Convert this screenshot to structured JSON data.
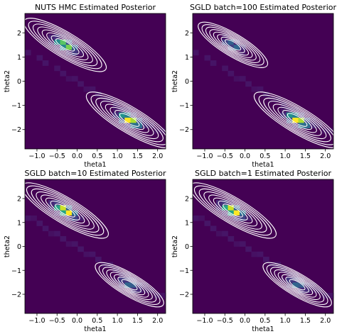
{
  "chart_data": [
    {
      "type": "heatmap",
      "title": "NUTS HMC Estimated Posterior",
      "xlabel": "theta1",
      "ylabel": "theta2",
      "xlim": [
        -1.3,
        2.2
      ],
      "ylim": [
        -2.8,
        2.8
      ],
      "xticks": [
        "−1.0",
        "−0.5",
        "0.0",
        "0.5",
        "1.0",
        "1.5",
        "2.0"
      ],
      "xtick_values": [
        -1.0,
        -0.5,
        0.0,
        0.5,
        1.0,
        1.5,
        2.0
      ],
      "yticks": [
        "−2",
        "−1",
        "0",
        "1",
        "2"
      ],
      "ytick_values": [
        -2,
        -1,
        0,
        1,
        2
      ],
      "grid": false,
      "modes": [
        {
          "theta1": -0.3,
          "theta2": 1.5,
          "density": 0.85
        },
        {
          "theta1": 1.3,
          "theta2": -1.6,
          "density": 1.0
        }
      ],
      "contour_levels": 8,
      "colormap": "viridis"
    },
    {
      "type": "heatmap",
      "title": "SGLD batch=100 Estimated Posterior",
      "xlabel": "theta1",
      "ylabel": "theta2",
      "xlim": [
        -1.3,
        2.2
      ],
      "ylim": [
        -2.8,
        2.8
      ],
      "xticks": [
        "−1.0",
        "−0.5",
        "0.0",
        "0.5",
        "1.0",
        "1.5",
        "2.0"
      ],
      "xtick_values": [
        -1.0,
        -0.5,
        0.0,
        0.5,
        1.0,
        1.5,
        2.0
      ],
      "yticks": [
        "−2",
        "−1",
        "0",
        "1",
        "2"
      ],
      "ytick_values": [
        -2,
        -1,
        0,
        1,
        2
      ],
      "grid": false,
      "modes": [
        {
          "theta1": -0.3,
          "theta2": 1.5,
          "density": 0.35
        },
        {
          "theta1": 1.3,
          "theta2": -1.6,
          "density": 1.0
        }
      ],
      "contour_levels": 8,
      "colormap": "viridis"
    },
    {
      "type": "heatmap",
      "title": "SGLD batch=10 Estimated Posterior",
      "xlabel": "theta1",
      "ylabel": "theta2",
      "xlim": [
        -1.3,
        2.2
      ],
      "ylim": [
        -2.8,
        2.8
      ],
      "xticks": [
        "−1.0",
        "−0.5",
        "0.0",
        "0.5",
        "1.0",
        "1.5",
        "2.0"
      ],
      "xtick_values": [
        -1.0,
        -0.5,
        0.0,
        0.5,
        1.0,
        1.5,
        2.0
      ],
      "yticks": [
        "−2",
        "−1",
        "0",
        "1",
        "2"
      ],
      "ytick_values": [
        -2,
        -1,
        0,
        1,
        2
      ],
      "grid": false,
      "modes": [
        {
          "theta1": -0.3,
          "theta2": 1.5,
          "density": 1.0
        },
        {
          "theta1": 1.3,
          "theta2": -1.6,
          "density": 0.3
        }
      ],
      "contour_levels": 8,
      "colormap": "viridis"
    },
    {
      "type": "heatmap",
      "title": "SGLD batch=1 Estimated Posterior",
      "xlabel": "theta1",
      "ylabel": "theta2",
      "xlim": [
        -1.3,
        2.2
      ],
      "ylim": [
        -2.8,
        2.8
      ],
      "xticks": [
        "−1.0",
        "−0.5",
        "0.0",
        "0.5",
        "1.0",
        "1.5",
        "2.0"
      ],
      "xtick_values": [
        -1.0,
        -0.5,
        0.0,
        0.5,
        1.0,
        1.5,
        2.0
      ],
      "yticks": [
        "−2",
        "−1",
        "0",
        "1",
        "2"
      ],
      "ytick_values": [
        -2,
        -1,
        0,
        1,
        2
      ],
      "grid": false,
      "modes": [
        {
          "theta1": -0.3,
          "theta2": 1.5,
          "density": 1.0
        },
        {
          "theta1": 1.3,
          "theta2": -1.6,
          "density": 0.3
        }
      ],
      "contour_levels": 8,
      "colormap": "viridis"
    }
  ],
  "colors": {
    "background": "#440154",
    "contour": "#ffffff",
    "axis": "#000000"
  }
}
